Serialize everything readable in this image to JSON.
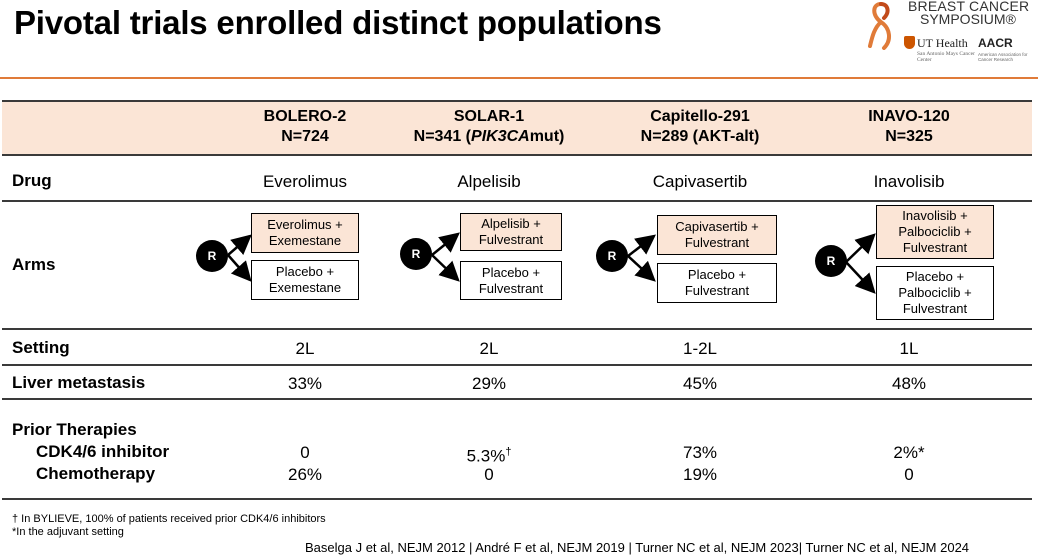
{
  "slide": {
    "title": "Pivotal trials enrolled distinct populations"
  },
  "logo": {
    "line1": "BREAST CANCER",
    "line2": "SYMPOSIUM®",
    "ut": "UT Health",
    "ut_sub": "San Antonio Mays Cancer Center",
    "aacr": "AACR",
    "aacr_sub": "American Association for Cancer Research"
  },
  "table": {
    "columns": [
      {
        "trial": "BOLERO-2",
        "n_prefix": "N=724",
        "n_italic": "",
        "n_suffix": ""
      },
      {
        "trial": "SOLAR-1",
        "n_prefix": "N=341 (",
        "n_italic": "PIK3CA",
        "n_suffix": "mut)"
      },
      {
        "trial": "Capitello-291",
        "n_prefix": "N=289 (AKT-alt)",
        "n_italic": "",
        "n_suffix": ""
      },
      {
        "trial": "INAVO-120",
        "n_prefix": "N=325",
        "n_italic": "",
        "n_suffix": ""
      }
    ],
    "rows": {
      "drug": {
        "label": "Drug",
        "values": [
          "Everolimus",
          "Alpelisib",
          "Capivasertib",
          "Inavolisib"
        ]
      },
      "arms": {
        "label": "Arms",
        "randomize": "R",
        "values": [
          {
            "treatment": "Everolimus + Exemestane",
            "control": "Placebo + Exemestane"
          },
          {
            "treatment": "Alpelisib + Fulvestrant",
            "control": "Placebo + Fulvestrant"
          },
          {
            "treatment": "Capivasertib + Fulvestrant",
            "control": "Placebo + Fulvestrant"
          },
          {
            "treatment": "Inavolisib + Palbociclib + Fulvestrant",
            "control": "Placebo + Palbociclib + Fulvestrant"
          }
        ]
      },
      "setting": {
        "label": "Setting",
        "values": [
          "2L",
          "2L",
          "1-2L",
          "1L"
        ]
      },
      "liver": {
        "label": "Liver metastasis",
        "values": [
          "33%",
          "29%",
          "45%",
          "48%"
        ]
      },
      "prior": {
        "label": "Prior Therapies",
        "cdk_label": "CDK4/6 inhibitor",
        "chemo_label": "Chemotherapy",
        "cdk_values": [
          {
            "value": "0",
            "mark": ""
          },
          {
            "value": "5.3%",
            "mark": "†"
          },
          {
            "value": "73%",
            "mark": ""
          },
          {
            "value": "2%*",
            "mark": ""
          }
        ],
        "chemo_values": [
          "26%",
          "0",
          "19%",
          "0"
        ]
      }
    }
  },
  "footnotes": {
    "dagger": "† In BYLIEVE, 100% of patients received prior CDK4/6 inhibitors",
    "star": "*In the adjuvant setting"
  },
  "references": "Baselga J et al, NEJM 2012 | André F et al, NEJM 2019 | Turner NC et al, NEJM 2023| Turner NC et al, NEJM 2024",
  "colors": {
    "accent": "#e07b39",
    "header_fill": "#fbe5d6",
    "rule": "#3a3a3a"
  }
}
